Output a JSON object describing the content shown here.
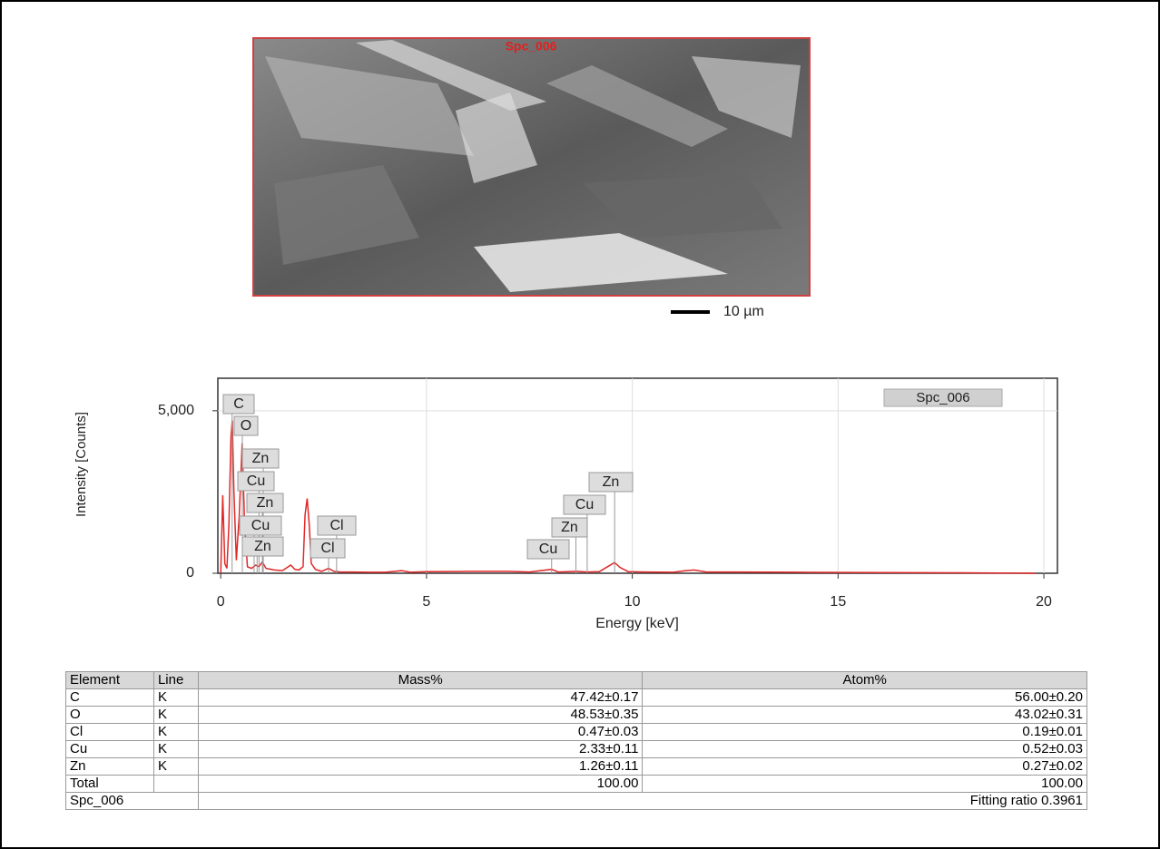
{
  "image": {
    "label": "Spc_006",
    "scale_bar": "10 µm"
  },
  "chart_data": {
    "type": "line",
    "xlabel": "Energy [keV]",
    "ylabel": "Intensity [Counts]",
    "xlim": [
      -0.07,
      20.33
    ],
    "ylim": [
      0,
      6000
    ],
    "xticks": [
      0,
      5,
      10,
      15,
      20
    ],
    "yticks": [
      0,
      {
        "value": 5000,
        "label": "5,000"
      }
    ],
    "grid": true,
    "series": [
      {
        "name": "Spc_006",
        "color": "#e02828",
        "x": [
          0,
          0.05,
          0.1,
          0.15,
          0.2,
          0.25,
          0.28,
          0.32,
          0.38,
          0.45,
          0.52,
          0.58,
          0.65,
          0.75,
          0.85,
          0.93,
          1.01,
          1.1,
          1.3,
          1.5,
          1.7,
          1.8,
          1.9,
          2.0,
          2.05,
          2.1,
          2.15,
          2.2,
          2.3,
          2.45,
          2.62,
          2.75,
          2.9,
          3.2,
          3.6,
          4.0,
          4.4,
          4.6,
          5.0,
          6.0,
          7.0,
          7.5,
          8.04,
          8.2,
          8.63,
          8.9,
          9.2,
          9.57,
          9.7,
          9.9,
          10.3,
          11.0,
          11.3,
          11.5,
          11.8,
          12.5,
          14,
          16,
          18,
          19.8
        ],
        "values": [
          0,
          2400,
          300,
          150,
          1500,
          4200,
          4700,
          2500,
          400,
          1800,
          4000,
          1500,
          200,
          150,
          250,
          200,
          350,
          150,
          100,
          80,
          250,
          120,
          100,
          200,
          1800,
          2300,
          1500,
          300,
          120,
          60,
          150,
          60,
          40,
          40,
          30,
          30,
          80,
          30,
          50,
          60,
          60,
          40,
          120,
          40,
          60,
          40,
          50,
          330,
          180,
          50,
          40,
          30,
          80,
          100,
          40,
          40,
          30,
          20,
          15,
          0
        ]
      }
    ],
    "peak_labels": [
      {
        "text": "C",
        "energy": 0.277
      },
      {
        "text": "O",
        "energy": 0.525
      },
      {
        "text": "Zn",
        "energy": 1.034
      },
      {
        "text": "Cu",
        "energy": 0.93
      },
      {
        "text": "Zn",
        "energy": 1.012
      },
      {
        "text": "Cu",
        "energy": 0.811
      },
      {
        "text": "Zn",
        "energy": 0.884
      },
      {
        "text": "Cl",
        "energy": 2.815
      },
      {
        "text": "Cl",
        "energy": 2.622
      },
      {
        "text": "Cu",
        "energy": 8.04
      },
      {
        "text": "Zn",
        "energy": 8.63
      },
      {
        "text": "Cu",
        "energy": 8.904
      },
      {
        "text": "Zn",
        "energy": 9.571
      }
    ]
  },
  "table": {
    "header": [
      "Element",
      "Line",
      "Mass%",
      "Atom%"
    ],
    "rows": [
      [
        "C",
        "K",
        "47.42±0.17",
        "56.00±0.20"
      ],
      [
        "O",
        "K",
        "48.53±0.35",
        "43.02±0.31"
      ],
      [
        "Cl",
        "K",
        "0.47±0.03",
        "0.19±0.01"
      ],
      [
        "Cu",
        "K",
        "2.33±0.11",
        "0.52±0.03"
      ],
      [
        "Zn",
        "K",
        "1.26±0.11",
        "0.27±0.02"
      ]
    ],
    "total": {
      "element": "Total",
      "mass": "100.00",
      "atom": "100.00"
    },
    "footer": [
      "Spc_006",
      "Fitting ratio 0.3961"
    ]
  }
}
